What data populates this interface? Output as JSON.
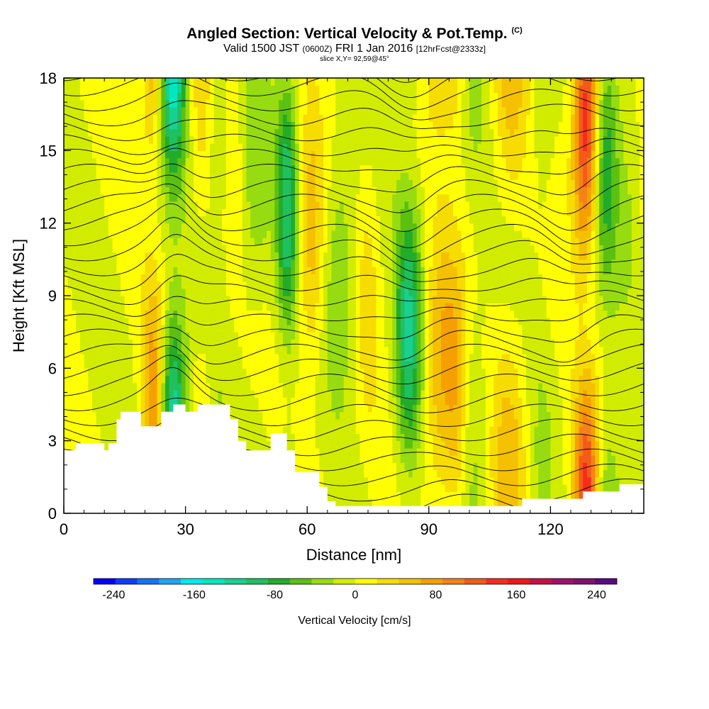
{
  "header": {
    "title": "Angled Section: Vertical Velocity & Pot.Temp.",
    "title_unit": "(C)",
    "valid_prefix": "Valid 1500 JST",
    "valid_utc": "(0600Z)",
    "valid_date": "FRI 1 Jan 2016",
    "forecast": "[12hrFcst@2333z]",
    "slice": "slice X,Y= 92,59@45°"
  },
  "chart_data": {
    "type": "heatmap",
    "xlabel": "Distance [nm]",
    "ylabel": "Height [Kft MSL]",
    "xlim": [
      0,
      143
    ],
    "ylim": [
      0,
      18
    ],
    "x_ticks": [
      "0",
      "30",
      "60",
      "90",
      "120"
    ],
    "y_ticks": [
      "0",
      "3",
      "6",
      "9",
      "12",
      "15",
      "18"
    ],
    "colorbar": {
      "label": "Vertical Velocity [cm/s]",
      "tick_labels": [
        "-240",
        "-160",
        "-80",
        "0",
        "80",
        "160",
        "240"
      ],
      "min": -260,
      "max": 260,
      "colors": [
        "#0000ff",
        "#0a3cff",
        "#1473f5",
        "#1ea6f5",
        "#00e8f0",
        "#00e8c0",
        "#18d090",
        "#1fc060",
        "#22ac2a",
        "#5cc010",
        "#96dc10",
        "#d2ec00",
        "#ffff00",
        "#f7dc00",
        "#f5c000",
        "#f5a000",
        "#f58218",
        "#f55a18",
        "#f52d1e",
        "#f01616",
        "#c81046",
        "#a0106e",
        "#82106e",
        "#5a0a82"
      ]
    },
    "bands": [
      {
        "x": 22,
        "value": 90
      },
      {
        "x": 27,
        "value": -150
      },
      {
        "x": 34,
        "value": 30
      },
      {
        "x": 38,
        "value": -40
      },
      {
        "x": 42,
        "value": 15
      },
      {
        "x": 47,
        "value": -40
      },
      {
        "x": 55,
        "value": -100
      },
      {
        "x": 61,
        "value": 60
      },
      {
        "x": 68,
        "value": -45
      },
      {
        "x": 75,
        "value": 30
      },
      {
        "x": 85,
        "value": -110
      },
      {
        "x": 93,
        "value": 70
      },
      {
        "x": 97,
        "value": 45
      },
      {
        "x": 101,
        "value": -30
      },
      {
        "x": 110,
        "value": 55
      },
      {
        "x": 118,
        "value": -25
      },
      {
        "x": 129,
        "value": 175
      },
      {
        "x": 133,
        "value": -90
      },
      {
        "x": 140,
        "value": -20
      }
    ],
    "terrain": [
      [
        0,
        2.6
      ],
      [
        3,
        2.6
      ],
      [
        3,
        2.9
      ],
      [
        10,
        2.9
      ],
      [
        10,
        2.6
      ],
      [
        11,
        2.6
      ],
      [
        11,
        2.9
      ],
      [
        13,
        2.9
      ],
      [
        13,
        3.9
      ],
      [
        14,
        3.9
      ],
      [
        14,
        4.2
      ],
      [
        19,
        4.2
      ],
      [
        19,
        3.6
      ],
      [
        24,
        3.6
      ],
      [
        24,
        4.2
      ],
      [
        27,
        4.2
      ],
      [
        27,
        4.5
      ],
      [
        30,
        4.5
      ],
      [
        30,
        4.2
      ],
      [
        33,
        4.2
      ],
      [
        33,
        4.5
      ],
      [
        41,
        4.5
      ],
      [
        41,
        3.9
      ],
      [
        43,
        3.9
      ],
      [
        43,
        3.0
      ],
      [
        45,
        3.0
      ],
      [
        45,
        2.6
      ],
      [
        51,
        2.6
      ],
      [
        51,
        3.3
      ],
      [
        55,
        3.3
      ],
      [
        55,
        2.6
      ],
      [
        57,
        2.6
      ],
      [
        57,
        1.7
      ],
      [
        63,
        1.7
      ],
      [
        63,
        1.1
      ],
      [
        65,
        1.1
      ],
      [
        65,
        0.5
      ],
      [
        67,
        0.5
      ],
      [
        67,
        0.3
      ],
      [
        113,
        0.3
      ],
      [
        113,
        0.6
      ],
      [
        128,
        0.6
      ],
      [
        128,
        0.9
      ],
      [
        137,
        0.9
      ],
      [
        137,
        1.2
      ],
      [
        143,
        1.2
      ]
    ],
    "theta_levels": [
      -2,
      0,
      2,
      4,
      6,
      8,
      10,
      12,
      14,
      16,
      18,
      20,
      22,
      24,
      26,
      28,
      30,
      32,
      34,
      36,
      38,
      40,
      42,
      44,
      46,
      48,
      50,
      52,
      54,
      56,
      58,
      60,
      62
    ]
  }
}
